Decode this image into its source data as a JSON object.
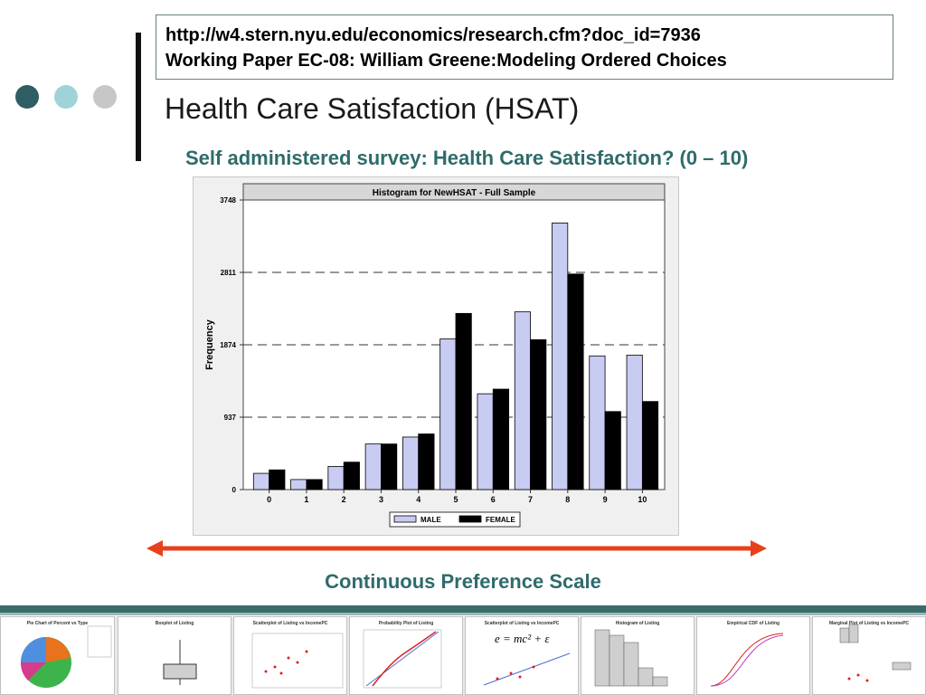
{
  "header": {
    "url": "http://w4.stern.nyu.edu/economics/research.cfm?doc_id=7936",
    "paper": "Working Paper EC-08: William Greene:Modeling Ordered Choices"
  },
  "slide": {
    "title": "Health Care Satisfaction (HSAT)",
    "subtitle": "Self administered survey: Health Care Satisfaction? (0 – 10)",
    "scale_label": "Continuous Preference Scale"
  },
  "colors": {
    "dot1": "#2e5e63",
    "dot2": "#9fd3d8",
    "dot3": "#c7c7c7",
    "accent_text": "#2f6b6b",
    "arrow": "#e8401c",
    "male_bar": "#c8cbf2",
    "female_bar": "#000000"
  },
  "chart_data": {
    "type": "bar",
    "title": "Histogram for NewHSAT - Full Sample",
    "xlabel": "",
    "ylabel": "Frequency",
    "categories": [
      "0",
      "1",
      "2",
      "3",
      "4",
      "5",
      "6",
      "7",
      "8",
      "9",
      "10"
    ],
    "y_ticks": [
      "0",
      "937",
      "1874",
      "2811",
      "3748"
    ],
    "ylim": [
      0,
      3748
    ],
    "grid": "dashed horizontal at y ticks",
    "legend": "bottom",
    "series": [
      {
        "name": "MALE",
        "values": [
          210,
          130,
          300,
          590,
          680,
          1950,
          1240,
          2300,
          3450,
          1730,
          1740
        ]
      },
      {
        "name": "FEMALE",
        "values": [
          255,
          130,
          355,
          590,
          720,
          2280,
          1300,
          1940,
          2790,
          1010,
          1140
        ]
      }
    ]
  },
  "thumbnails": [
    {
      "title": "Pie Chart of Percent vs Type"
    },
    {
      "title": "Boxplot of Listing"
    },
    {
      "title": "Scatterplot of Listing vs IncomePC"
    },
    {
      "title": "Probability Plot of Listing"
    },
    {
      "title": "Scatterplot of Listing vs IncomePC",
      "formula": "e = mc² + ε"
    },
    {
      "title": "Histogram of Listing"
    },
    {
      "title": "Empirical CDF of Listing"
    },
    {
      "title": "Marginal Plot of Listing vs IncomePC"
    }
  ]
}
